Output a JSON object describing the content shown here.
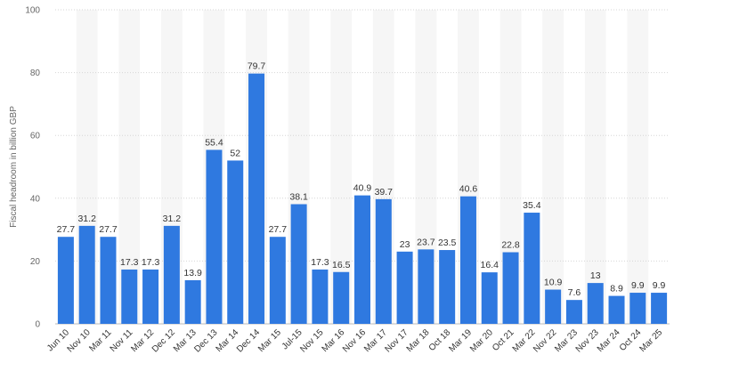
{
  "chart_data": {
    "type": "bar",
    "ylabel": "Fiscal headroom in billion GBP",
    "ylim": [
      0,
      100
    ],
    "yticks": [
      0,
      20,
      40,
      60,
      80,
      100
    ],
    "grid": true,
    "colors": {
      "bar": "#2f79e0",
      "grid": "#d6d6d6",
      "band": "#f6f6f6"
    },
    "categories": [
      "Jun 10",
      "Nov 10",
      "Mar 11",
      "Nov 11",
      "Mar 12",
      "Dec 12",
      "Mar 13",
      "Dec 13",
      "Mar 14",
      "Dec 14",
      "Mar 15",
      "Jul-15",
      "Nov 15",
      "Mar 16",
      "Nov 16",
      "Mar 17",
      "Nov 17",
      "Mar 18",
      "Oct 18",
      "Mar 19",
      "Mar 20",
      "Oct 21",
      "Mar 22",
      "Nov 22",
      "Mar 23",
      "Nov 23",
      "Mar 24",
      "Oct 24",
      "Mar 25"
    ],
    "values": [
      27.7,
      31.2,
      27.7,
      17.3,
      17.3,
      31.2,
      13.9,
      55.4,
      52,
      79.7,
      27.7,
      38.1,
      17.3,
      16.5,
      40.9,
      39.7,
      23,
      23.7,
      23.5,
      40.6,
      16.4,
      22.8,
      35.4,
      10.9,
      7.6,
      13,
      8.9,
      9.9,
      9.9
    ]
  }
}
